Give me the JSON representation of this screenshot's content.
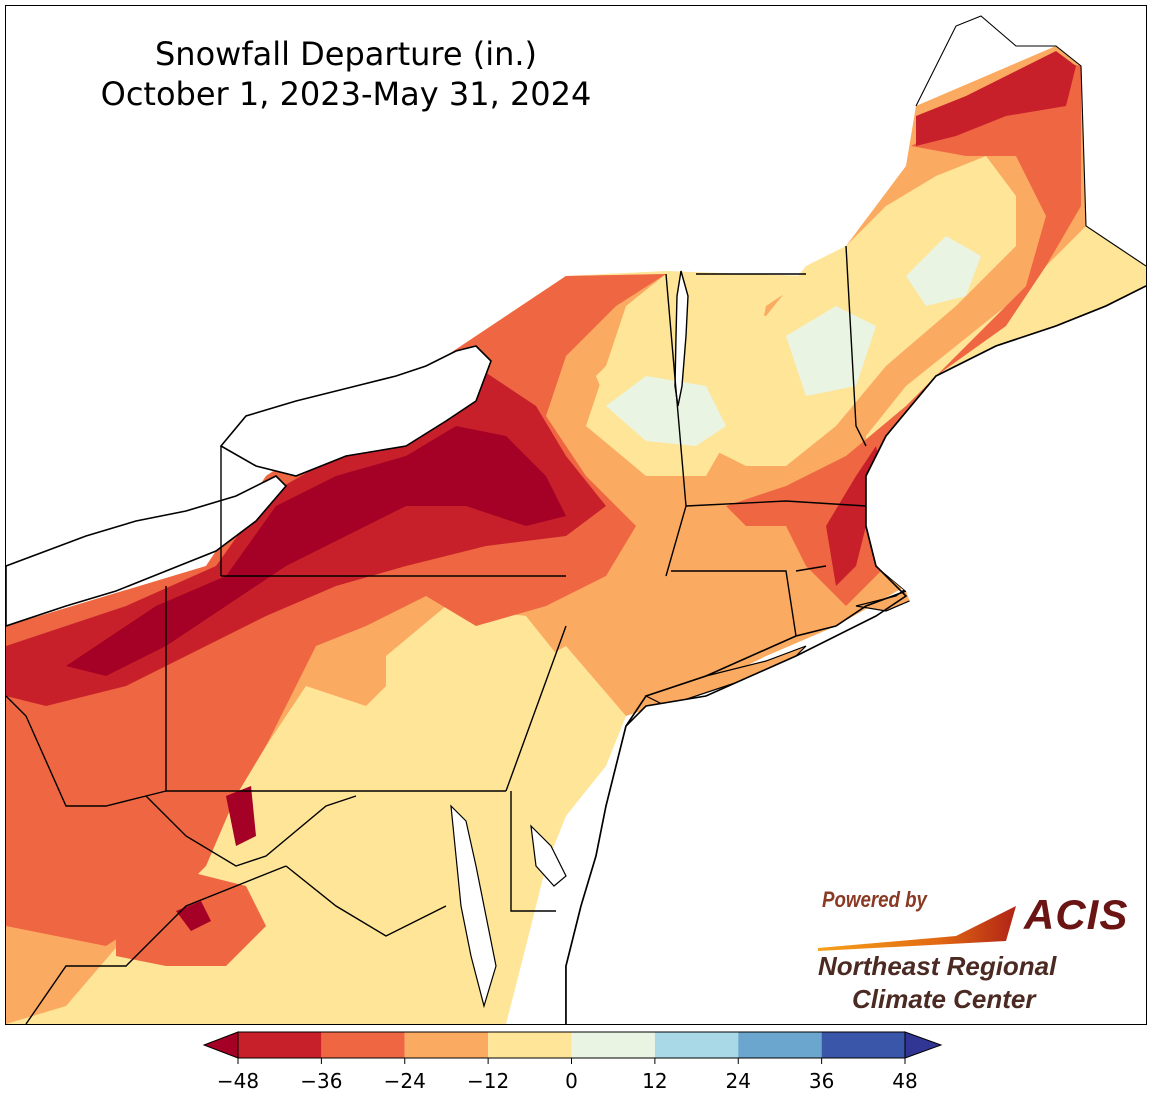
{
  "title": {
    "line1": "Snowfall Departure (in.)",
    "line2": "October 1, 2023-May 31, 2024"
  },
  "logo": {
    "powered_by": "Powered by",
    "acis": "ACIS",
    "org_line1": "Northeast Regional",
    "org_line2": "Climate Center"
  },
  "legend": {
    "ticks": [
      "−48",
      "−36",
      "−24",
      "−12",
      "0",
      "12",
      "24",
      "36",
      "48"
    ],
    "colors": [
      "#c8202a",
      "#ef6642",
      "#fbaa62",
      "#fee598",
      "#eaf4e2",
      "#a9d8e6",
      "#6aa6cd",
      "#3a56a8"
    ],
    "under_color": "#a50026",
    "over_color": "#313695"
  },
  "map_colors": {
    "below_neg48": "#a50026",
    "neg48_neg36": "#c8202a",
    "neg36_neg24": "#ef6642",
    "neg24_neg12": "#fbaa62",
    "neg12_0": "#fee598",
    "0_12": "#eaf4e2",
    "water": "#ffffff"
  }
}
